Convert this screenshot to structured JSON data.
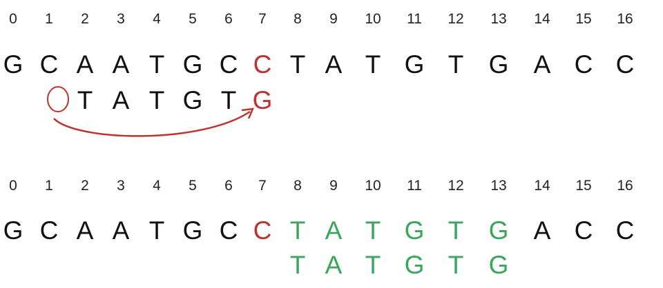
{
  "colors": {
    "text": "#111111",
    "mismatch": "#c0302f",
    "match": "#3aa55c"
  },
  "panel_top": {
    "indices": [
      "0",
      "1",
      "2",
      "3",
      "4",
      "5",
      "6",
      "7",
      "8",
      "9",
      "10",
      "11",
      "12",
      "13",
      "14",
      "15",
      "16"
    ],
    "sequence": [
      "G",
      "C",
      "A",
      "A",
      "T",
      "G",
      "C",
      "C",
      "T",
      "A",
      "T",
      "G",
      "T",
      "G",
      "A",
      "C",
      "C"
    ],
    "sequence_highlight": {
      "mismatch": [
        7
      ],
      "match": []
    },
    "pattern_start": 1,
    "pattern": [
      "",
      "T",
      "A",
      "T",
      "G",
      "T",
      "G"
    ],
    "pattern_highlight": {
      "mismatch": [
        6
      ],
      "match": [],
      "empty_circle": [
        0
      ]
    }
  },
  "panel_bottom": {
    "indices": [
      "0",
      "1",
      "2",
      "3",
      "4",
      "5",
      "6",
      "7",
      "8",
      "9",
      "10",
      "11",
      "12",
      "13",
      "14",
      "15",
      "16"
    ],
    "sequence": [
      "G",
      "C",
      "A",
      "A",
      "T",
      "G",
      "C",
      "C",
      "T",
      "A",
      "T",
      "G",
      "T",
      "G",
      "A",
      "C",
      "C"
    ],
    "sequence_highlight": {
      "mismatch": [
        7
      ],
      "match": [
        8,
        9,
        10,
        11,
        12,
        13
      ]
    },
    "pattern_start": 8,
    "pattern": [
      "T",
      "A",
      "T",
      "G",
      "T",
      "G"
    ],
    "pattern_highlight": {
      "mismatch": [],
      "match": [
        0,
        1,
        2,
        3,
        4,
        5
      ]
    }
  }
}
